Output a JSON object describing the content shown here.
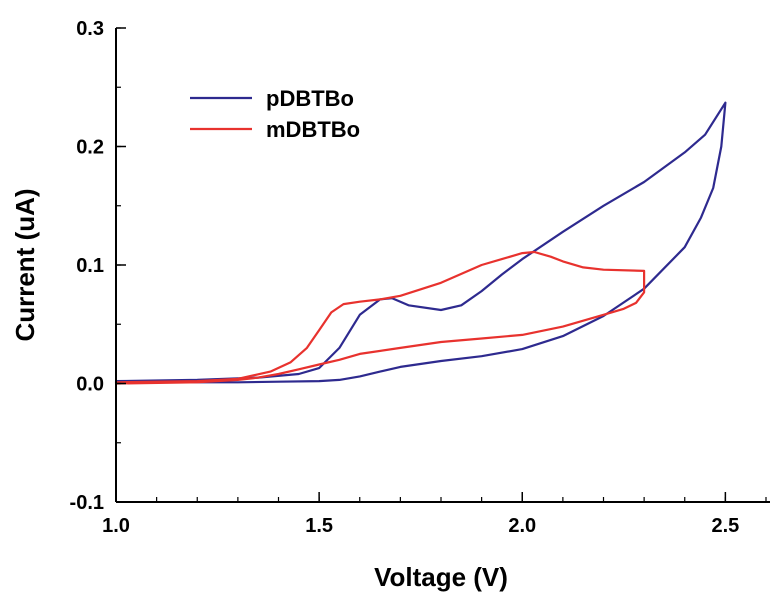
{
  "chart_data": {
    "type": "line",
    "title": "",
    "xlabel": "Voltage (V)",
    "ylabel": "Current (uA)",
    "xlim": [
      1.0,
      2.6
    ],
    "ylim": [
      -0.1,
      0.3
    ],
    "xticks": [
      1.0,
      1.5,
      2.0,
      2.5
    ],
    "xtick_labels": [
      "1.0",
      "1.5",
      "2.0",
      "2.5"
    ],
    "yticks": [
      -0.1,
      0.0,
      0.1,
      0.2,
      0.3
    ],
    "ytick_labels": [
      "-0.1",
      "0.0",
      "0.1",
      "0.2",
      "0.3"
    ],
    "grid": false,
    "legend_position": "top-left",
    "series": [
      {
        "name": "pDBTBo",
        "color": "#2e2a8f",
        "x": [
          1.0,
          1.2,
          1.35,
          1.45,
          1.5,
          1.55,
          1.6,
          1.65,
          1.68,
          1.72,
          1.8,
          1.85,
          1.9,
          1.95,
          2.0,
          2.1,
          2.2,
          2.3,
          2.4,
          2.45,
          2.5,
          2.49,
          2.47,
          2.44,
          2.4,
          2.3,
          2.2,
          2.1,
          2.0,
          1.9,
          1.8,
          1.7,
          1.65,
          1.6,
          1.55,
          1.5,
          1.4,
          1.3,
          1.2,
          1.0
        ],
        "y": [
          0.002,
          0.003,
          0.005,
          0.008,
          0.013,
          0.03,
          0.058,
          0.071,
          0.072,
          0.066,
          0.062,
          0.066,
          0.078,
          0.092,
          0.105,
          0.128,
          0.15,
          0.17,
          0.195,
          0.21,
          0.237,
          0.2,
          0.165,
          0.14,
          0.115,
          0.08,
          0.057,
          0.04,
          0.029,
          0.023,
          0.019,
          0.014,
          0.01,
          0.006,
          0.003,
          0.002,
          0.0015,
          0.001,
          0.001,
          0.001
        ]
      },
      {
        "name": "mDBTBo",
        "color": "#e8322e",
        "x": [
          1.0,
          1.2,
          1.3,
          1.38,
          1.43,
          1.47,
          1.5,
          1.53,
          1.56,
          1.6,
          1.65,
          1.7,
          1.8,
          1.9,
          1.95,
          2.0,
          2.03,
          2.07,
          2.1,
          2.15,
          2.2,
          2.3,
          2.3,
          2.28,
          2.25,
          2.2,
          2.1,
          2.0,
          1.9,
          1.8,
          1.7,
          1.6,
          1.55,
          1.5,
          1.45,
          1.4,
          1.35,
          1.3,
          1.2,
          1.0
        ],
        "y": [
          0.001,
          0.002,
          0.004,
          0.01,
          0.018,
          0.03,
          0.045,
          0.06,
          0.067,
          0.069,
          0.071,
          0.074,
          0.085,
          0.1,
          0.105,
          0.11,
          0.111,
          0.107,
          0.103,
          0.098,
          0.096,
          0.095,
          0.077,
          0.068,
          0.063,
          0.058,
          0.048,
          0.041,
          0.038,
          0.035,
          0.03,
          0.025,
          0.02,
          0.016,
          0.012,
          0.008,
          0.005,
          0.003,
          0.001,
          0.0
        ]
      }
    ]
  }
}
